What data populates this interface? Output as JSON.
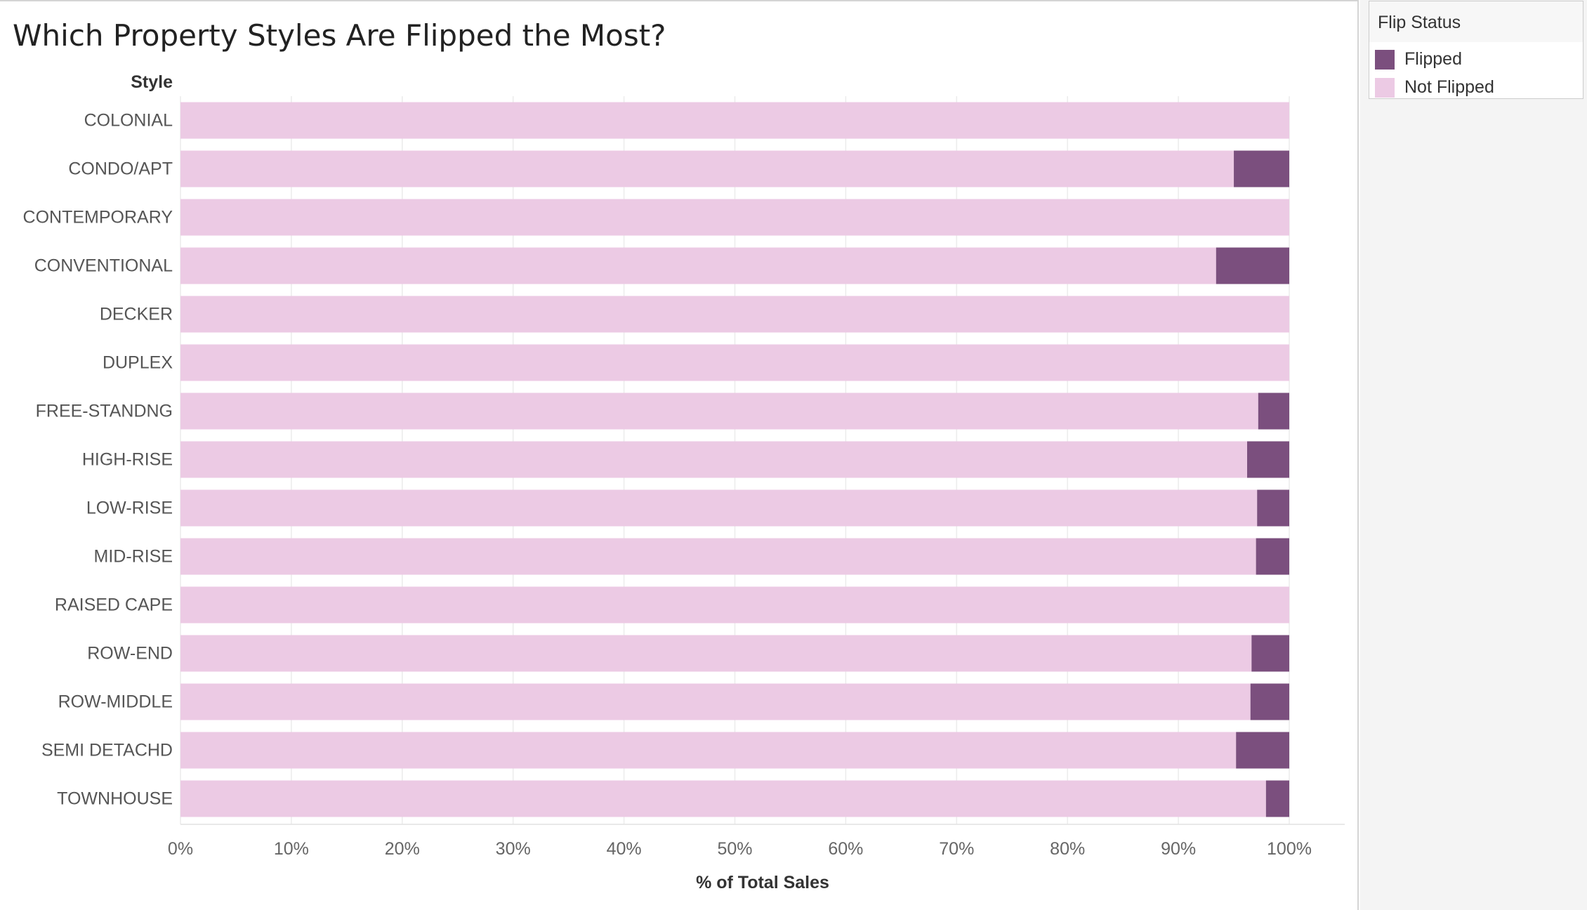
{
  "title": "Which Property Styles Are Flipped the Most?",
  "legend": {
    "title": "Flip Status",
    "items": [
      {
        "label": "Flipped",
        "color": "#7b4f7e"
      },
      {
        "label": "Not Flipped",
        "color": "#eccae4"
      }
    ]
  },
  "chart_data": {
    "type": "bar",
    "orientation": "horizontal",
    "stacked": true,
    "title": "Which Property Styles Are Flipped the Most?",
    "ylabel": "Style",
    "xlabel": "% of Total Sales",
    "xlim": [
      0,
      100
    ],
    "grid": true,
    "legend_position": "top-right",
    "x_ticks": [
      "0%",
      "10%",
      "20%",
      "30%",
      "40%",
      "50%",
      "60%",
      "70%",
      "80%",
      "90%",
      "100%"
    ],
    "categories": [
      "COLONIAL",
      "CONDO/APT",
      "CONTEMPORARY",
      "CONVENTIONAL",
      "DECKER",
      "DUPLEX",
      "FREE-STANDNG",
      "HIGH-RISE",
      "LOW-RISE",
      "MID-RISE",
      "RAISED CAPE",
      "ROW-END",
      "ROW-MIDDLE",
      "SEMI DETACHD",
      "TOWNHOUSE"
    ],
    "series": [
      {
        "name": "Not Flipped",
        "color": "#eccae4",
        "values": [
          100,
          95.0,
          100,
          93.4,
          100,
          100,
          97.2,
          96.2,
          97.1,
          97.0,
          100,
          96.6,
          96.5,
          95.2,
          97.9
        ]
      },
      {
        "name": "Flipped",
        "color": "#7b4f7e",
        "values": [
          0,
          5.0,
          0,
          6.6,
          0,
          0,
          2.8,
          3.8,
          2.9,
          3.0,
          0,
          3.4,
          3.5,
          4.8,
          2.1
        ]
      }
    ]
  }
}
